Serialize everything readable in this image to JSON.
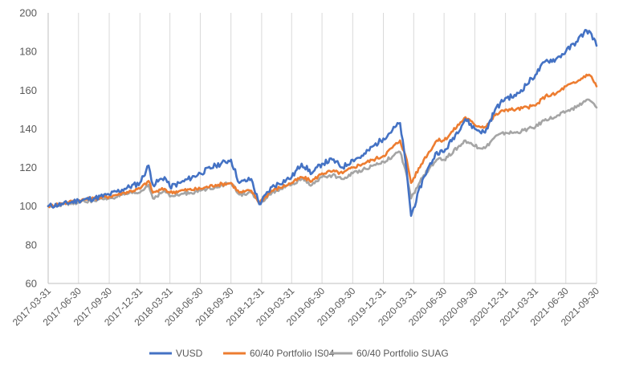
{
  "chart_data": {
    "type": "line",
    "title": "",
    "xlabel": "",
    "ylabel": "",
    "ylim": [
      60,
      200
    ],
    "y_ticks": [
      "60",
      "80",
      "100",
      "120",
      "140",
      "160",
      "180",
      "200"
    ],
    "x_ticks": [
      "2017-03-31",
      "2017-06-30",
      "2017-09-30",
      "2017-12-31",
      "2018-03-31",
      "2018-06-30",
      "2018-09-30",
      "2018-12-31",
      "2019-03-31",
      "2019-06-30",
      "2019-09-30",
      "2019-12-31",
      "2020-03-31",
      "2020-06-30",
      "2020-09-30",
      "2020-12-31",
      "2021-03-31",
      "2021-06-30",
      "2021-09-30"
    ],
    "grid": "vertical",
    "legend_position": "bottom",
    "series": [
      {
        "name": "VUSD",
        "color": "#4472C4",
        "points": [
          [
            "2017-03-31",
            100
          ],
          [
            "2017-05-15",
            101
          ],
          [
            "2017-06-30",
            103
          ],
          [
            "2017-08-15",
            104
          ],
          [
            "2017-09-30",
            106
          ],
          [
            "2017-11-15",
            109
          ],
          [
            "2017-12-31",
            112
          ],
          [
            "2018-01-26",
            121
          ],
          [
            "2018-02-08",
            111
          ],
          [
            "2018-03-15",
            115
          ],
          [
            "2018-03-31",
            110
          ],
          [
            "2018-05-01",
            112
          ],
          [
            "2018-06-30",
            117
          ],
          [
            "2018-08-15",
            121
          ],
          [
            "2018-09-30",
            124
          ],
          [
            "2018-10-25",
            112
          ],
          [
            "2018-11-30",
            114
          ],
          [
            "2018-12-24",
            101
          ],
          [
            "2019-01-31",
            110
          ],
          [
            "2019-03-31",
            115
          ],
          [
            "2019-04-30",
            122
          ],
          [
            "2019-05-31",
            117
          ],
          [
            "2019-06-30",
            122
          ],
          [
            "2019-07-31",
            124
          ],
          [
            "2019-08-31",
            120
          ],
          [
            "2019-09-30",
            124
          ],
          [
            "2019-10-31",
            126
          ],
          [
            "2019-11-30",
            131
          ],
          [
            "2019-12-31",
            135
          ],
          [
            "2020-02-19",
            143
          ],
          [
            "2020-03-10",
            118
          ],
          [
            "2020-03-23",
            95
          ],
          [
            "2020-04-30",
            115
          ],
          [
            "2020-06-08",
            128
          ],
          [
            "2020-06-30",
            128
          ],
          [
            "2020-09-02",
            145
          ],
          [
            "2020-09-30",
            140
          ],
          [
            "2020-10-31",
            138
          ],
          [
            "2020-11-30",
            150
          ],
          [
            "2020-12-31",
            156
          ],
          [
            "2021-01-31",
            157
          ],
          [
            "2021-03-31",
            168
          ],
          [
            "2021-04-30",
            175
          ],
          [
            "2021-05-31",
            176
          ],
          [
            "2021-06-30",
            180
          ],
          [
            "2021-07-31",
            185
          ],
          [
            "2021-08-31",
            191
          ],
          [
            "2021-09-15",
            189
          ],
          [
            "2021-09-30",
            183
          ]
        ]
      },
      {
        "name": "60/40 Portfolio IS04",
        "color": "#ED7D31",
        "points": [
          [
            "2017-03-31",
            100
          ],
          [
            "2017-05-15",
            101.5
          ],
          [
            "2017-06-30",
            103
          ],
          [
            "2017-08-15",
            104
          ],
          [
            "2017-09-30",
            105
          ],
          [
            "2017-11-15",
            107
          ],
          [
            "2017-12-31",
            109
          ],
          [
            "2018-01-26",
            113
          ],
          [
            "2018-02-08",
            107
          ],
          [
            "2018-03-15",
            109
          ],
          [
            "2018-03-31",
            107
          ],
          [
            "2018-05-01",
            108
          ],
          [
            "2018-06-30",
            109
          ],
          [
            "2018-08-15",
            111
          ],
          [
            "2018-09-30",
            112
          ],
          [
            "2018-10-25",
            107
          ],
          [
            "2018-11-30",
            108
          ],
          [
            "2018-12-24",
            102
          ],
          [
            "2019-01-31",
            108
          ],
          [
            "2019-03-31",
            112
          ],
          [
            "2019-04-30",
            115
          ],
          [
            "2019-05-31",
            113
          ],
          [
            "2019-06-30",
            117
          ],
          [
            "2019-07-31",
            118
          ],
          [
            "2019-08-31",
            117
          ],
          [
            "2019-09-30",
            120
          ],
          [
            "2019-10-31",
            122
          ],
          [
            "2019-11-30",
            124
          ],
          [
            "2019-12-31",
            126
          ],
          [
            "2020-02-19",
            134
          ],
          [
            "2020-03-10",
            124
          ],
          [
            "2020-03-23",
            112
          ],
          [
            "2020-04-30",
            124
          ],
          [
            "2020-06-08",
            134
          ],
          [
            "2020-06-30",
            134
          ],
          [
            "2020-09-02",
            146
          ],
          [
            "2020-09-30",
            142
          ],
          [
            "2020-10-31",
            141
          ],
          [
            "2020-11-30",
            147
          ],
          [
            "2020-12-31",
            150
          ],
          [
            "2021-01-31",
            150
          ],
          [
            "2021-03-31",
            152
          ],
          [
            "2021-04-30",
            157
          ],
          [
            "2021-05-31",
            158
          ],
          [
            "2021-06-30",
            162
          ],
          [
            "2021-07-31",
            164
          ],
          [
            "2021-08-31",
            168
          ],
          [
            "2021-09-15",
            167
          ],
          [
            "2021-09-30",
            162
          ]
        ]
      },
      {
        "name": "60/40 Portfolio SUAG",
        "color": "#A5A5A5",
        "points": [
          [
            "2017-03-31",
            100
          ],
          [
            "2017-05-15",
            101
          ],
          [
            "2017-06-30",
            102
          ],
          [
            "2017-08-15",
            103
          ],
          [
            "2017-09-30",
            104
          ],
          [
            "2017-11-15",
            106
          ],
          [
            "2017-12-31",
            107
          ],
          [
            "2018-01-26",
            111
          ],
          [
            "2018-02-08",
            104
          ],
          [
            "2018-03-15",
            108
          ],
          [
            "2018-03-31",
            105
          ],
          [
            "2018-05-01",
            106
          ],
          [
            "2018-06-30",
            108
          ],
          [
            "2018-08-15",
            110
          ],
          [
            "2018-09-30",
            112
          ],
          [
            "2018-10-25",
            106
          ],
          [
            "2018-11-30",
            107
          ],
          [
            "2018-12-24",
            101
          ],
          [
            "2019-01-31",
            107
          ],
          [
            "2019-03-31",
            111
          ],
          [
            "2019-04-30",
            114
          ],
          [
            "2019-05-31",
            111
          ],
          [
            "2019-06-30",
            115
          ],
          [
            "2019-07-31",
            116
          ],
          [
            "2019-08-31",
            114
          ],
          [
            "2019-09-30",
            117
          ],
          [
            "2019-10-31",
            119
          ],
          [
            "2019-11-30",
            121
          ],
          [
            "2019-12-31",
            123
          ],
          [
            "2020-02-19",
            128
          ],
          [
            "2020-03-10",
            116
          ],
          [
            "2020-03-23",
            104
          ],
          [
            "2020-04-30",
            116
          ],
          [
            "2020-06-08",
            124
          ],
          [
            "2020-06-30",
            124
          ],
          [
            "2020-09-02",
            134
          ],
          [
            "2020-09-30",
            131
          ],
          [
            "2020-10-31",
            130
          ],
          [
            "2020-11-30",
            136
          ],
          [
            "2020-12-31",
            138
          ],
          [
            "2021-01-31",
            138
          ],
          [
            "2021-03-31",
            141
          ],
          [
            "2021-04-30",
            145
          ],
          [
            "2021-05-31",
            146
          ],
          [
            "2021-06-30",
            149
          ],
          [
            "2021-07-31",
            151
          ],
          [
            "2021-08-31",
            155
          ],
          [
            "2021-09-15",
            154
          ],
          [
            "2021-09-30",
            151
          ]
        ]
      }
    ]
  }
}
